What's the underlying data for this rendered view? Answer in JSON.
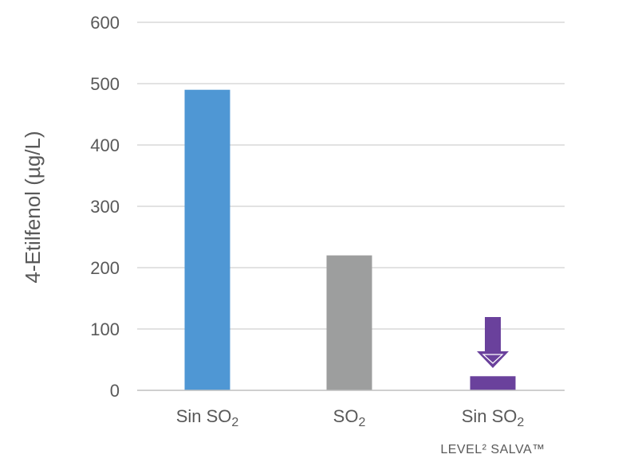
{
  "chart_data": {
    "type": "bar",
    "ylabel": "4-Etilfenol (µg/L)",
    "ylim": [
      0,
      600
    ],
    "yticks": [
      0,
      100,
      200,
      300,
      400,
      500,
      600
    ],
    "grid": true,
    "bars": [
      {
        "label_base": "Sin SO",
        "label_sub": "2",
        "value": 490,
        "color": "#4f97d4",
        "sublabel": ""
      },
      {
        "label_base": "SO",
        "label_sub": "2",
        "value": 220,
        "color": "#9d9e9e",
        "sublabel": ""
      },
      {
        "label_base": "Sin SO",
        "label_sub": "2",
        "value": 23,
        "color": "#6a419c",
        "sublabel": "LEVEL² SALVA™"
      }
    ],
    "annotation": {
      "type": "down-arrow",
      "bar_index": 2,
      "color": "#6a419c"
    }
  },
  "colors": {
    "grid": "#d9d9d9",
    "axis": "#bfbfbf",
    "text": "#595959"
  }
}
